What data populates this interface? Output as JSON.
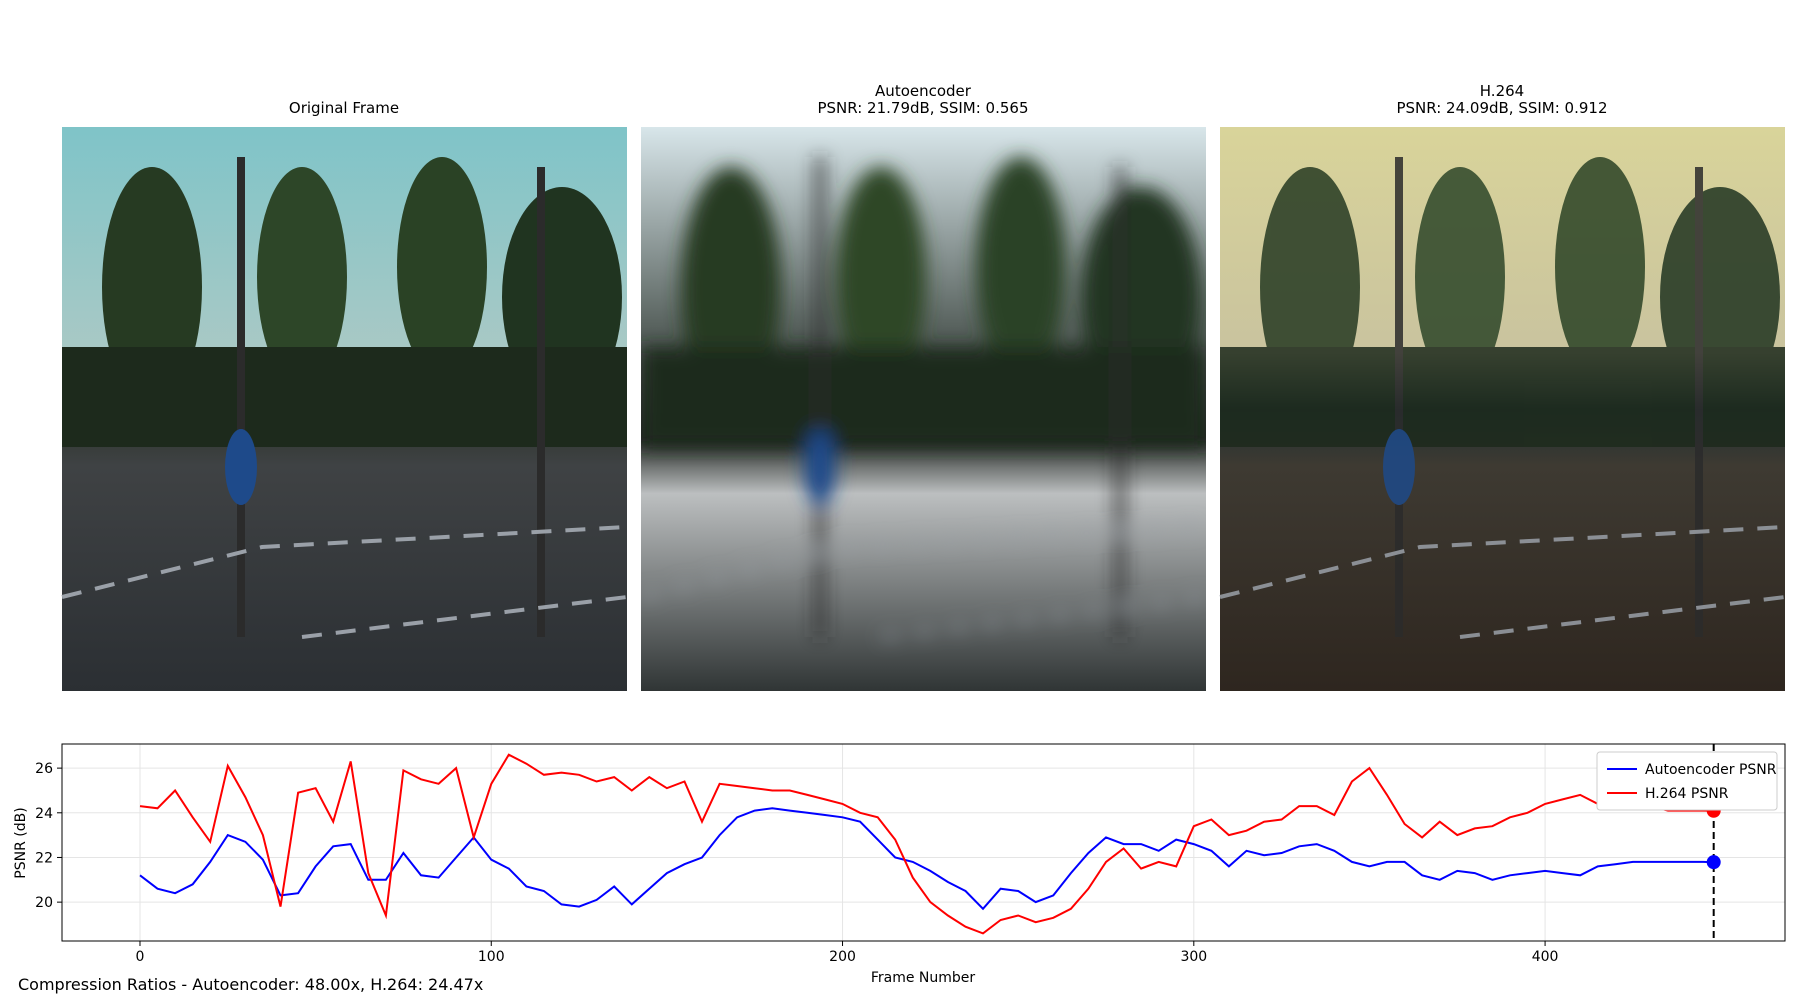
{
  "panels": [
    {
      "title": "Original Frame"
    },
    {
      "title": "Autoencoder",
      "subtitle": "PSNR: 21.79dB, SSIM: 0.565"
    },
    {
      "title": "H.264",
      "subtitle": "PSNR: 24.09dB, SSIM: 0.912"
    }
  ],
  "footer": "Compression Ratios - Autoencoder: 48.00x, H.264: 24.47x",
  "chart_data": {
    "type": "line",
    "xlabel": "Frame Number",
    "ylabel": "PSNR (dB)",
    "x": [
      0,
      5,
      10,
      15,
      20,
      25,
      30,
      35,
      40,
      45,
      50,
      55,
      60,
      65,
      70,
      75,
      80,
      85,
      90,
      95,
      100,
      105,
      110,
      115,
      120,
      125,
      130,
      135,
      140,
      145,
      150,
      155,
      160,
      165,
      170,
      175,
      180,
      185,
      190,
      195,
      200,
      205,
      210,
      215,
      220,
      225,
      230,
      235,
      240,
      245,
      250,
      255,
      260,
      265,
      270,
      275,
      280,
      285,
      290,
      295,
      300,
      305,
      310,
      315,
      320,
      325,
      330,
      335,
      340,
      345,
      350,
      355,
      360,
      365,
      370,
      375,
      380,
      385,
      390,
      395,
      400,
      405,
      410,
      415,
      420,
      425,
      430,
      435,
      440,
      445,
      448
    ],
    "series": [
      {
        "name": "Autoencoder PSNR",
        "color": "#0000ff",
        "values": [
          21.2,
          20.6,
          20.4,
          20.8,
          21.8,
          23.0,
          22.7,
          21.9,
          20.3,
          20.4,
          21.6,
          22.5,
          22.6,
          21.0,
          21.0,
          22.2,
          21.2,
          21.1,
          22.0,
          22.9,
          21.9,
          21.5,
          20.7,
          20.5,
          19.9,
          19.8,
          20.1,
          20.7,
          19.9,
          20.6,
          21.3,
          21.7,
          22.0,
          23.0,
          23.8,
          24.1,
          24.2,
          24.1,
          24.0,
          23.9,
          23.8,
          23.6,
          22.8,
          22.0,
          21.8,
          21.4,
          20.9,
          20.5,
          19.7,
          20.6,
          20.5,
          20.0,
          20.3,
          21.3,
          22.2,
          22.9,
          22.6,
          22.6,
          22.3,
          22.8,
          22.6,
          22.3,
          21.6,
          22.3,
          22.1,
          22.2,
          22.5,
          22.6,
          22.3,
          21.8,
          21.6,
          21.8,
          21.8,
          21.2,
          21.0,
          21.4,
          21.3,
          21.0,
          21.2,
          21.3,
          21.4,
          21.3,
          21.2,
          21.6,
          21.7,
          21.8,
          21.8,
          21.8,
          21.8,
          21.8,
          21.79
        ]
      },
      {
        "name": "H.264 PSNR",
        "color": "#ff0000",
        "values": [
          24.3,
          24.2,
          25.0,
          23.8,
          22.7,
          26.1,
          24.7,
          23.0,
          19.8,
          24.9,
          25.1,
          23.6,
          26.3,
          21.3,
          19.4,
          25.9,
          25.5,
          25.3,
          26.0,
          22.9,
          25.3,
          26.6,
          26.2,
          25.7,
          25.8,
          25.7,
          25.4,
          25.6,
          25.0,
          25.6,
          25.1,
          25.4,
          23.6,
          25.3,
          25.2,
          25.1,
          25.0,
          25.0,
          24.8,
          24.6,
          24.4,
          24.0,
          23.8,
          22.8,
          21.1,
          20.0,
          19.4,
          18.9,
          18.6,
          19.2,
          19.4,
          19.1,
          19.3,
          19.7,
          20.6,
          21.8,
          22.4,
          21.5,
          21.8,
          21.6,
          23.4,
          23.7,
          23.0,
          23.2,
          23.6,
          23.7,
          24.3,
          24.3,
          23.9,
          25.4,
          26.0,
          24.8,
          23.5,
          22.9,
          23.6,
          23.0,
          23.3,
          23.4,
          23.8,
          24.0,
          24.4,
          24.6,
          24.8,
          24.4,
          24.2,
          24.3,
          24.3,
          24.1,
          24.1,
          24.1,
          24.09
        ]
      }
    ],
    "current_frame": 448,
    "xlim": [
      -22.2,
      468.3
    ],
    "ylim": [
      18.26,
      27.08
    ],
    "xticks": [
      0,
      100,
      200,
      300,
      400
    ],
    "yticks": [
      20,
      22,
      24,
      26
    ],
    "grid": true,
    "legend": "upper right"
  }
}
